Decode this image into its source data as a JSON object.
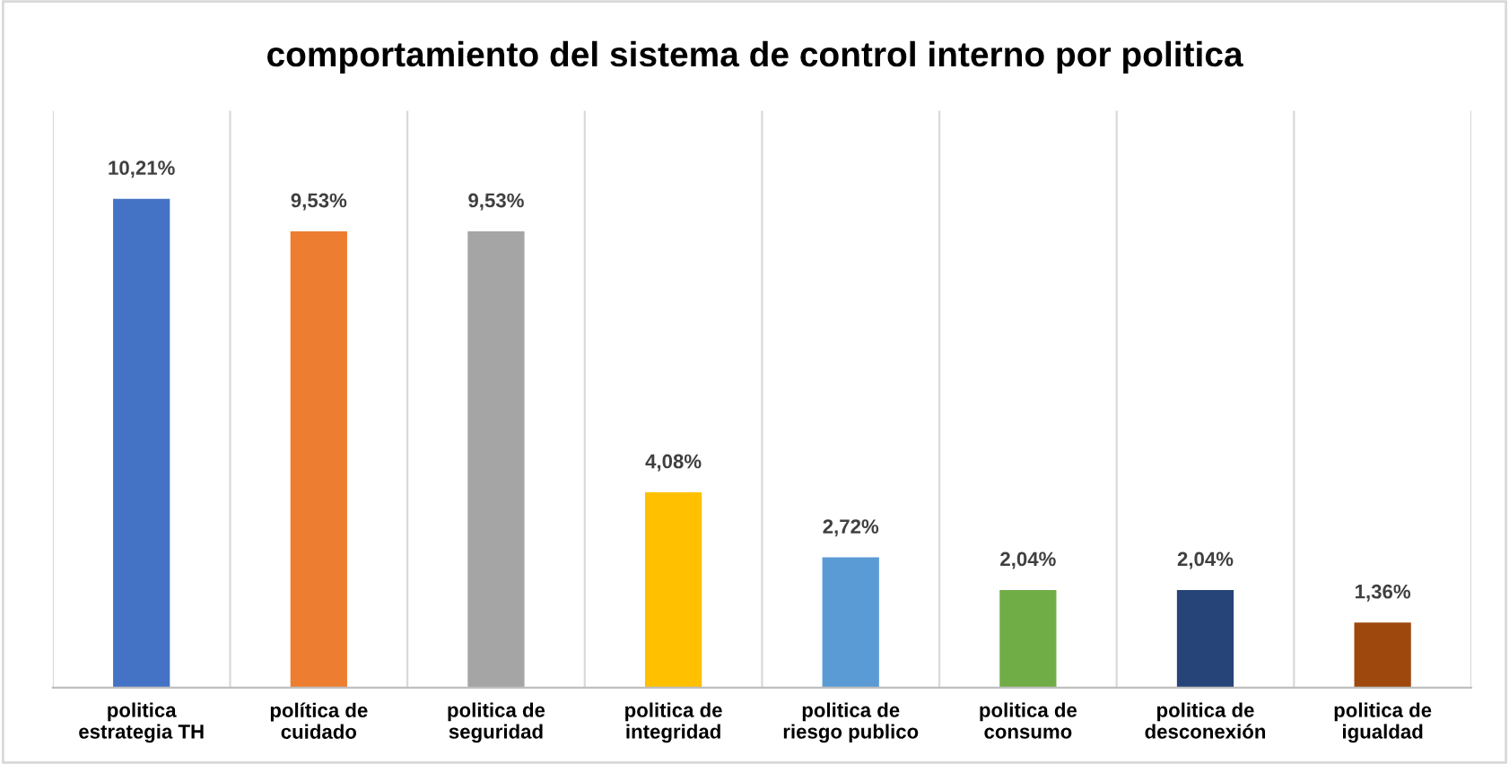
{
  "chart_data": {
    "type": "bar",
    "title": "comportamiento del sistema de control interno por politica",
    "categories": [
      "politica estrategia TH",
      "política de cuidado",
      "politica de seguridad",
      "politica de integridad",
      "politica de riesgo publico",
      "politica de consumo",
      "politica de desconexión",
      "politica de igualdad"
    ],
    "values": [
      10.21,
      9.53,
      9.53,
      4.08,
      2.72,
      2.04,
      2.04,
      1.36
    ],
    "value_labels": [
      "10,21%",
      "9,53%",
      "9,53%",
      "4,08%",
      "2,72%",
      "2,04%",
      "2,04%",
      "1,36%"
    ],
    "colors": [
      "#4472c4",
      "#ed7d31",
      "#a5a5a5",
      "#ffc000",
      "#5b9bd5",
      "#70ad47",
      "#264478",
      "#9e480e"
    ],
    "grid": "x"
  }
}
